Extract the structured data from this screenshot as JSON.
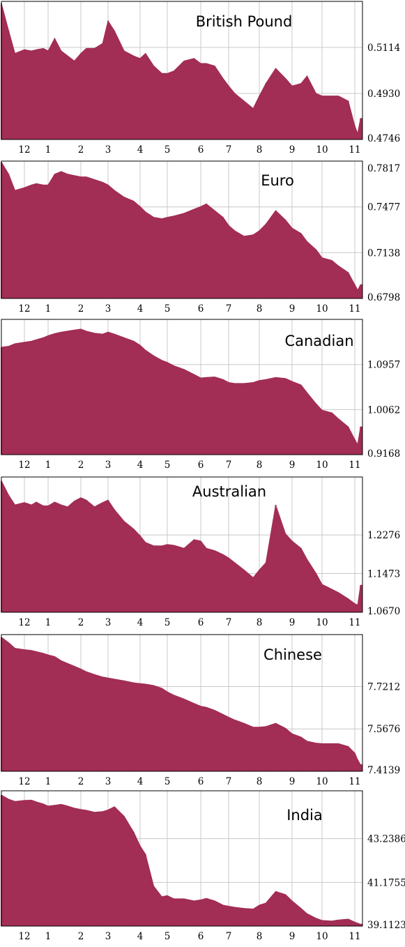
{
  "colors": {
    "area": "#a22d55",
    "grid": "#c8c8c8",
    "frame": "#000000",
    "background": "#ffffff"
  },
  "x_tick_labels": [
    "12",
    "1",
    "2",
    "3",
    "4",
    "5",
    "6",
    "7",
    "8",
    "9",
    "10",
    "11"
  ],
  "chart_data": [
    {
      "type": "area",
      "title": "British Pound",
      "ylim": [
        0.4746,
        0.5298
      ],
      "y_ticks": [
        0.4746,
        0.493,
        0.5114
      ],
      "y_tick_labels": [
        "0.4746",
        "0.4930",
        "0.5114"
      ],
      "x_ticks": [
        12,
        1,
        2,
        3,
        4,
        5,
        6,
        7,
        8,
        9,
        10,
        11
      ],
      "x": [
        11.2,
        11.5,
        11.7,
        12.0,
        12.3,
        12.5,
        12.8,
        1.0,
        1.2,
        1.4,
        1.6,
        1.8,
        2.0,
        2.2,
        2.5,
        2.8,
        3.0,
        3.2,
        3.5,
        3.8,
        4.0,
        4.2,
        4.5,
        4.8,
        5.0,
        5.2,
        5.5,
        5.8,
        6.0,
        6.2,
        6.5,
        6.8,
        7.0,
        7.2,
        7.5,
        7.8,
        8.0,
        8.2,
        8.5,
        8.8,
        9.0,
        9.3,
        9.5,
        9.8,
        10.0,
        10.3,
        10.5,
        10.8,
        11.0,
        11.1,
        11.2
      ],
      "y": [
        0.529,
        0.518,
        0.509,
        0.5105,
        0.51,
        0.5105,
        0.511,
        0.51,
        0.515,
        0.51,
        0.508,
        0.506,
        0.509,
        0.511,
        0.511,
        0.513,
        0.522,
        0.518,
        0.51,
        0.508,
        0.507,
        0.509,
        0.504,
        0.501,
        0.501,
        0.502,
        0.506,
        0.507,
        0.505,
        0.505,
        0.504,
        0.499,
        0.496,
        0.493,
        0.49,
        0.487,
        0.492,
        0.497,
        0.503,
        0.499,
        0.496,
        0.497,
        0.5,
        0.493,
        0.492,
        0.492,
        0.492,
        0.49,
        0.48,
        0.477,
        0.483
      ]
    },
    {
      "type": "area",
      "title": "Euro",
      "ylim": [
        0.6798,
        0.7817
      ],
      "y_ticks": [
        0.6798,
        0.7138,
        0.7477,
        0.7817
      ],
      "y_tick_labels": [
        "0.6798",
        "0.7138",
        "0.7477",
        "0.7817"
      ],
      "x_ticks": [
        12,
        1,
        2,
        3,
        4,
        5,
        6,
        7,
        8,
        9,
        10,
        11
      ],
      "x": [
        11.2,
        11.5,
        11.7,
        12.0,
        12.3,
        12.5,
        12.8,
        1.0,
        1.2,
        1.4,
        1.6,
        1.8,
        2.0,
        2.2,
        2.5,
        2.8,
        3.0,
        3.2,
        3.5,
        3.8,
        4.0,
        4.2,
        4.5,
        4.8,
        5.0,
        5.2,
        5.5,
        5.8,
        6.0,
        6.2,
        6.5,
        6.8,
        7.0,
        7.2,
        7.5,
        7.8,
        8.0,
        8.2,
        8.5,
        8.8,
        9.0,
        9.3,
        9.5,
        9.8,
        10.0,
        10.3,
        10.5,
        10.8,
        11.0,
        11.1,
        11.2
      ],
      "y": [
        0.781,
        0.772,
        0.76,
        0.762,
        0.764,
        0.765,
        0.764,
        0.764,
        0.772,
        0.774,
        0.772,
        0.771,
        0.77,
        0.77,
        0.768,
        0.766,
        0.764,
        0.76,
        0.755,
        0.752,
        0.748,
        0.744,
        0.74,
        0.739,
        0.74,
        0.741,
        0.743,
        0.746,
        0.748,
        0.75,
        0.745,
        0.74,
        0.734,
        0.73,
        0.726,
        0.727,
        0.73,
        0.735,
        0.745,
        0.738,
        0.732,
        0.728,
        0.722,
        0.716,
        0.71,
        0.708,
        0.704,
        0.699,
        0.69,
        0.686,
        0.69
      ]
    },
    {
      "type": "area",
      "title": "Canadian",
      "ylim": [
        0.9168,
        1.1852
      ],
      "y_ticks": [
        0.9168,
        1.0062,
        1.0957
      ],
      "y_tick_labels": [
        "0.9168",
        "1.0062",
        "1.0957"
      ],
      "x_ticks": [
        12,
        1,
        2,
        3,
        4,
        5,
        6,
        7,
        8,
        9,
        10,
        11
      ],
      "x": [
        11.2,
        11.5,
        11.7,
        12.0,
        12.3,
        12.5,
        12.8,
        1.0,
        1.2,
        1.4,
        1.6,
        1.8,
        2.0,
        2.2,
        2.5,
        2.8,
        3.0,
        3.2,
        3.5,
        3.8,
        4.0,
        4.2,
        4.5,
        4.8,
        5.0,
        5.2,
        5.5,
        5.8,
        6.0,
        6.2,
        6.5,
        6.8,
        7.0,
        7.2,
        7.5,
        7.8,
        8.0,
        8.2,
        8.5,
        8.8,
        9.0,
        9.3,
        9.5,
        9.8,
        10.0,
        10.3,
        10.5,
        10.8,
        11.0,
        11.1,
        11.2
      ],
      "y": [
        1.13,
        1.132,
        1.137,
        1.14,
        1.142,
        1.145,
        1.149,
        1.153,
        1.157,
        1.16,
        1.162,
        1.164,
        1.166,
        1.162,
        1.158,
        1.156,
        1.16,
        1.156,
        1.149,
        1.142,
        1.134,
        1.124,
        1.113,
        1.104,
        1.1,
        1.093,
        1.086,
        1.076,
        1.069,
        1.07,
        1.071,
        1.066,
        1.06,
        1.058,
        1.058,
        1.06,
        1.064,
        1.066,
        1.07,
        1.068,
        1.062,
        1.055,
        1.04,
        1.018,
        1.005,
        1.0,
        0.988,
        0.972,
        0.947,
        0.937,
        0.972
      ]
    },
    {
      "type": "area",
      "title": "Australian",
      "ylim": [
        1.067,
        1.348
      ],
      "y_ticks": [
        1.067,
        1.1473,
        1.2276
      ],
      "y_tick_labels": [
        "1.0670",
        "1.1473",
        "1.2276"
      ],
      "x_ticks": [
        12,
        1,
        2,
        3,
        4,
        5,
        6,
        7,
        8,
        9,
        10,
        11
      ],
      "x": [
        11.2,
        11.5,
        11.7,
        12.0,
        12.3,
        12.5,
        12.8,
        1.0,
        1.2,
        1.4,
        1.6,
        1.8,
        2.0,
        2.2,
        2.5,
        2.8,
        3.0,
        3.2,
        3.5,
        3.8,
        4.0,
        4.2,
        4.5,
        4.8,
        5.0,
        5.2,
        5.5,
        5.8,
        6.0,
        6.2,
        6.5,
        6.8,
        7.0,
        7.2,
        7.5,
        7.8,
        8.0,
        8.2,
        8.5,
        8.8,
        9.0,
        9.3,
        9.5,
        9.8,
        10.0,
        10.3,
        10.5,
        10.8,
        11.0,
        11.1,
        11.2
      ],
      "y": [
        1.34,
        1.31,
        1.29,
        1.295,
        1.29,
        1.296,
        1.288,
        1.288,
        1.296,
        1.29,
        1.286,
        1.298,
        1.305,
        1.3,
        1.286,
        1.295,
        1.3,
        1.28,
        1.256,
        1.24,
        1.226,
        1.212,
        1.205,
        1.205,
        1.208,
        1.206,
        1.2,
        1.218,
        1.215,
        1.2,
        1.195,
        1.187,
        1.18,
        1.17,
        1.155,
        1.139,
        1.155,
        1.17,
        1.29,
        1.23,
        1.215,
        1.2,
        1.177,
        1.148,
        1.125,
        1.115,
        1.108,
        1.095,
        1.085,
        1.082,
        1.123
      ]
    },
    {
      "type": "area",
      "title": "Chinese",
      "ylim": [
        7.4139,
        7.9097
      ],
      "y_ticks": [
        7.4139,
        7.5676,
        7.7212
      ],
      "y_tick_labels": [
        "7.4139",
        "7.5676",
        "7.7212"
      ],
      "x_ticks": [
        12,
        1,
        2,
        3,
        4,
        5,
        6,
        7,
        8,
        9,
        10,
        11
      ],
      "x": [
        11.2,
        11.5,
        11.7,
        12.0,
        12.3,
        12.5,
        12.8,
        1.0,
        1.2,
        1.4,
        1.6,
        1.8,
        2.0,
        2.2,
        2.5,
        2.8,
        3.0,
        3.2,
        3.5,
        3.8,
        4.0,
        4.2,
        4.5,
        4.8,
        5.0,
        5.2,
        5.5,
        5.8,
        6.0,
        6.2,
        6.5,
        6.8,
        7.0,
        7.2,
        7.5,
        7.8,
        8.0,
        8.2,
        8.5,
        8.8,
        9.0,
        9.3,
        9.5,
        9.8,
        10.0,
        10.3,
        10.5,
        10.8,
        11.0,
        11.1,
        11.2
      ],
      "y": [
        7.9,
        7.88,
        7.86,
        7.855,
        7.852,
        7.848,
        7.842,
        7.836,
        7.83,
        7.815,
        7.805,
        7.795,
        7.785,
        7.775,
        7.765,
        7.756,
        7.752,
        7.748,
        7.742,
        7.735,
        7.732,
        7.73,
        7.725,
        7.715,
        7.702,
        7.69,
        7.676,
        7.66,
        7.65,
        7.646,
        7.635,
        7.62,
        7.61,
        7.6,
        7.588,
        7.574,
        7.574,
        7.576,
        7.588,
        7.57,
        7.55,
        7.538,
        7.523,
        7.516,
        7.514,
        7.514,
        7.514,
        7.504,
        7.48,
        7.456,
        7.438
      ]
    },
    {
      "type": "area",
      "title": "India",
      "ylim": [
        39.1123,
        45.5
      ],
      "y_ticks": [
        39.1123,
        41.1755,
        43.2386
      ],
      "y_tick_labels": [
        "39.1123",
        "41.1755",
        "43.2386"
      ],
      "x_ticks": [
        12,
        1,
        2,
        3,
        4,
        5,
        6,
        7,
        8,
        9,
        10,
        11
      ],
      "x": [
        11.2,
        11.5,
        11.7,
        12.0,
        12.3,
        12.5,
        12.8,
        1.0,
        1.2,
        1.4,
        1.6,
        1.8,
        2.0,
        2.2,
        2.5,
        2.8,
        3.0,
        3.2,
        3.5,
        3.8,
        4.0,
        4.2,
        4.5,
        4.8,
        5.0,
        5.2,
        5.5,
        5.8,
        6.0,
        6.2,
        6.5,
        6.8,
        7.0,
        7.2,
        7.5,
        7.8,
        8.0,
        8.2,
        8.5,
        8.8,
        9.0,
        9.3,
        9.5,
        9.8,
        10.0,
        10.3,
        10.5,
        10.8,
        11.0,
        11.1,
        11.2
      ],
      "y": [
        45.3,
        45.1,
        45.0,
        45.05,
        45.06,
        44.98,
        44.88,
        44.78,
        44.82,
        44.86,
        44.78,
        44.68,
        44.62,
        44.58,
        44.49,
        44.52,
        44.6,
        44.75,
        44.3,
        43.55,
        42.9,
        42.5,
        41.0,
        40.5,
        40.55,
        40.4,
        40.4,
        40.3,
        40.35,
        40.42,
        40.3,
        40.1,
        40.05,
        40.0,
        39.95,
        39.92,
        40.1,
        40.2,
        40.75,
        40.6,
        40.3,
        39.95,
        39.7,
        39.48,
        39.38,
        39.35,
        39.4,
        39.44,
        39.3,
        39.25,
        39.2
      ]
    }
  ]
}
